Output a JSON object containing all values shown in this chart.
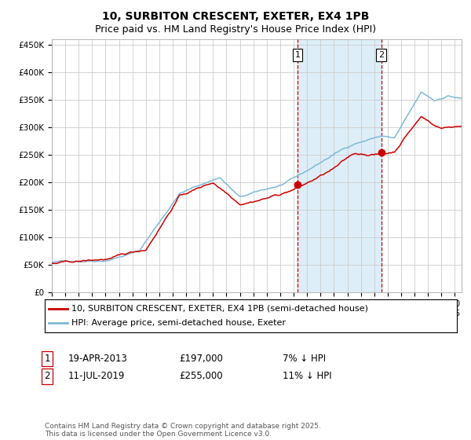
{
  "title": "10, SURBITON CRESCENT, EXETER, EX4 1PB",
  "subtitle": "Price paid vs. HM Land Registry's House Price Index (HPI)",
  "ylim": [
    0,
    460000
  ],
  "yticks": [
    0,
    50000,
    100000,
    150000,
    200000,
    250000,
    300000,
    350000,
    400000,
    450000
  ],
  "ytick_labels": [
    "£0",
    "£50K",
    "£100K",
    "£150K",
    "£200K",
    "£250K",
    "£300K",
    "£350K",
    "£400K",
    "£450K"
  ],
  "hpi_color": "#7fb8d8",
  "price_color": "#cc0000",
  "background_color": "#ffffff",
  "grid_color": "#cccccc",
  "shade_color": "#ddeef8",
  "vline_color": "#cc0000",
  "transaction1_date": 2013.29,
  "transaction1_price": 197000,
  "transaction1_label": "1",
  "transaction2_date": 2019.53,
  "transaction2_price": 255000,
  "transaction2_label": "2",
  "legend_label1": "10, SURBITON CRESCENT, EXETER, EX4 1PB (semi-detached house)",
  "legend_label2": "HPI: Average price, semi-detached house, Exeter",
  "ann1_date": "19-APR-2013",
  "ann1_price": "£197,000",
  "ann1_pct": "7% ↓ HPI",
  "ann2_date": "11-JUL-2019",
  "ann2_price": "£255,000",
  "ann2_pct": "11% ↓ HPI",
  "footnote": "Contains HM Land Registry data © Crown copyright and database right 2025.\nThis data is licensed under the Open Government Licence v3.0.",
  "title_fontsize": 10,
  "subtitle_fontsize": 9,
  "tick_fontsize": 7.5,
  "legend_fontsize": 8,
  "annot_fontsize": 8.5,
  "footnote_fontsize": 6.5
}
